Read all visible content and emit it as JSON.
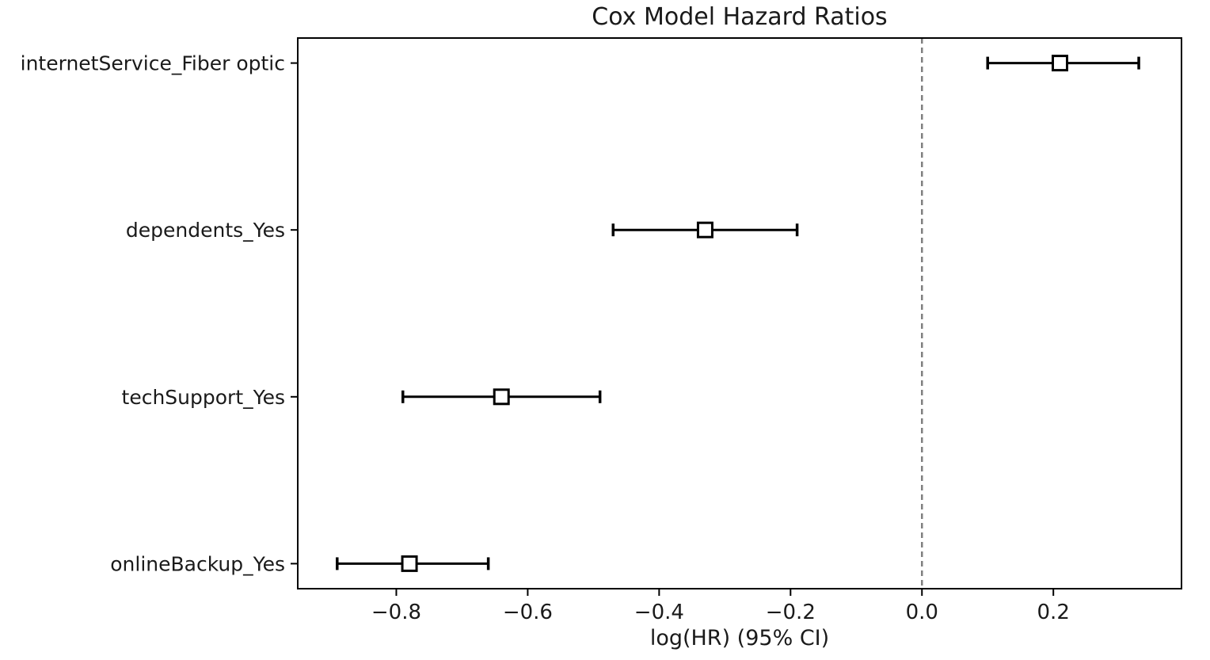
{
  "chart_data": {
    "type": "scatter",
    "subtype": "forest-plot-errorbar",
    "title": "Cox Model Hazard Ratios",
    "xlabel": "log(HR) (95% CI)",
    "ylabel": "",
    "categories": [
      "internetService_Fiber optic",
      "dependents_Yes",
      "techSupport_Yes",
      "onlineBackup_Yes"
    ],
    "series": [
      {
        "name": "log(HR)",
        "values": [
          0.21,
          -0.33,
          -0.64,
          -0.78
        ],
        "ci_low": [
          0.1,
          -0.47,
          -0.79,
          -0.89
        ],
        "ci_high": [
          0.33,
          -0.19,
          -0.49,
          -0.66
        ]
      }
    ],
    "y_positions": [
      3,
      2,
      1,
      0
    ],
    "xlim": [
      -0.95,
      0.395
    ],
    "ylim": [
      -0.15,
      3.15
    ],
    "xticks": [
      -0.8,
      -0.6,
      -0.4,
      -0.2,
      0.0,
      0.2
    ],
    "xtick_labels": [
      "−0.8",
      "−0.6",
      "−0.4",
      "−0.2",
      "0.0",
      "0.2"
    ],
    "reference_line_x": 0.0,
    "reference_line_style": "dashed",
    "grid": false,
    "legend": "none",
    "colors": {
      "marker_fill": "#ffffff",
      "marker_edge": "#000000",
      "errorbar": "#000000",
      "reference_line": "#808080",
      "spine": "#000000",
      "text": "#1a1a1a"
    }
  }
}
